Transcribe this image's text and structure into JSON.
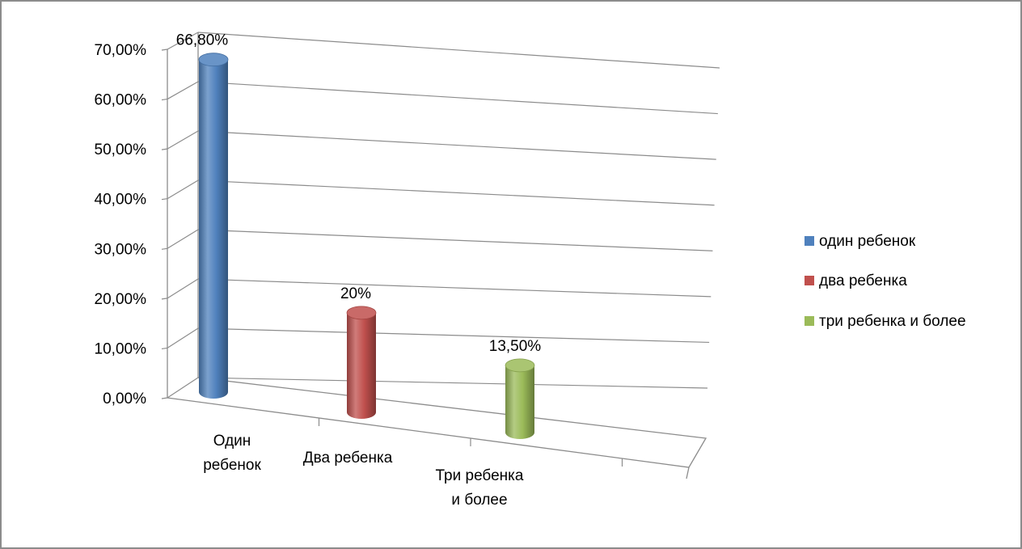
{
  "chart_data": {
    "type": "bar",
    "style": "3d-cylinder",
    "categories": [
      "Один ребенок",
      "Два ребенка",
      "Три ребенка и более"
    ],
    "category_label_lines": [
      [
        "Один",
        "ребенок"
      ],
      [
        "Два ребенка"
      ],
      [
        "Три ребенка",
        "и более"
      ]
    ],
    "values": [
      66.8,
      20,
      13.5
    ],
    "data_labels": [
      "66,80%",
      "20%",
      "13,50%"
    ],
    "colors": [
      "#4f81bd",
      "#c0504d",
      "#9bbb59"
    ],
    "ylim": [
      0,
      70
    ],
    "yticks": [
      0,
      10,
      20,
      30,
      40,
      50,
      60,
      70
    ],
    "ytick_labels": [
      "0,00%",
      "10,00%",
      "20,00%",
      "30,00%",
      "40,00%",
      "50,00%",
      "60,00%",
      "70,00%"
    ],
    "legend": {
      "position": "right",
      "entries": [
        "один ребенок",
        "два ребенка",
        "три ребенка и более"
      ]
    },
    "grid": true,
    "title": "",
    "xlabel": "",
    "ylabel": ""
  }
}
